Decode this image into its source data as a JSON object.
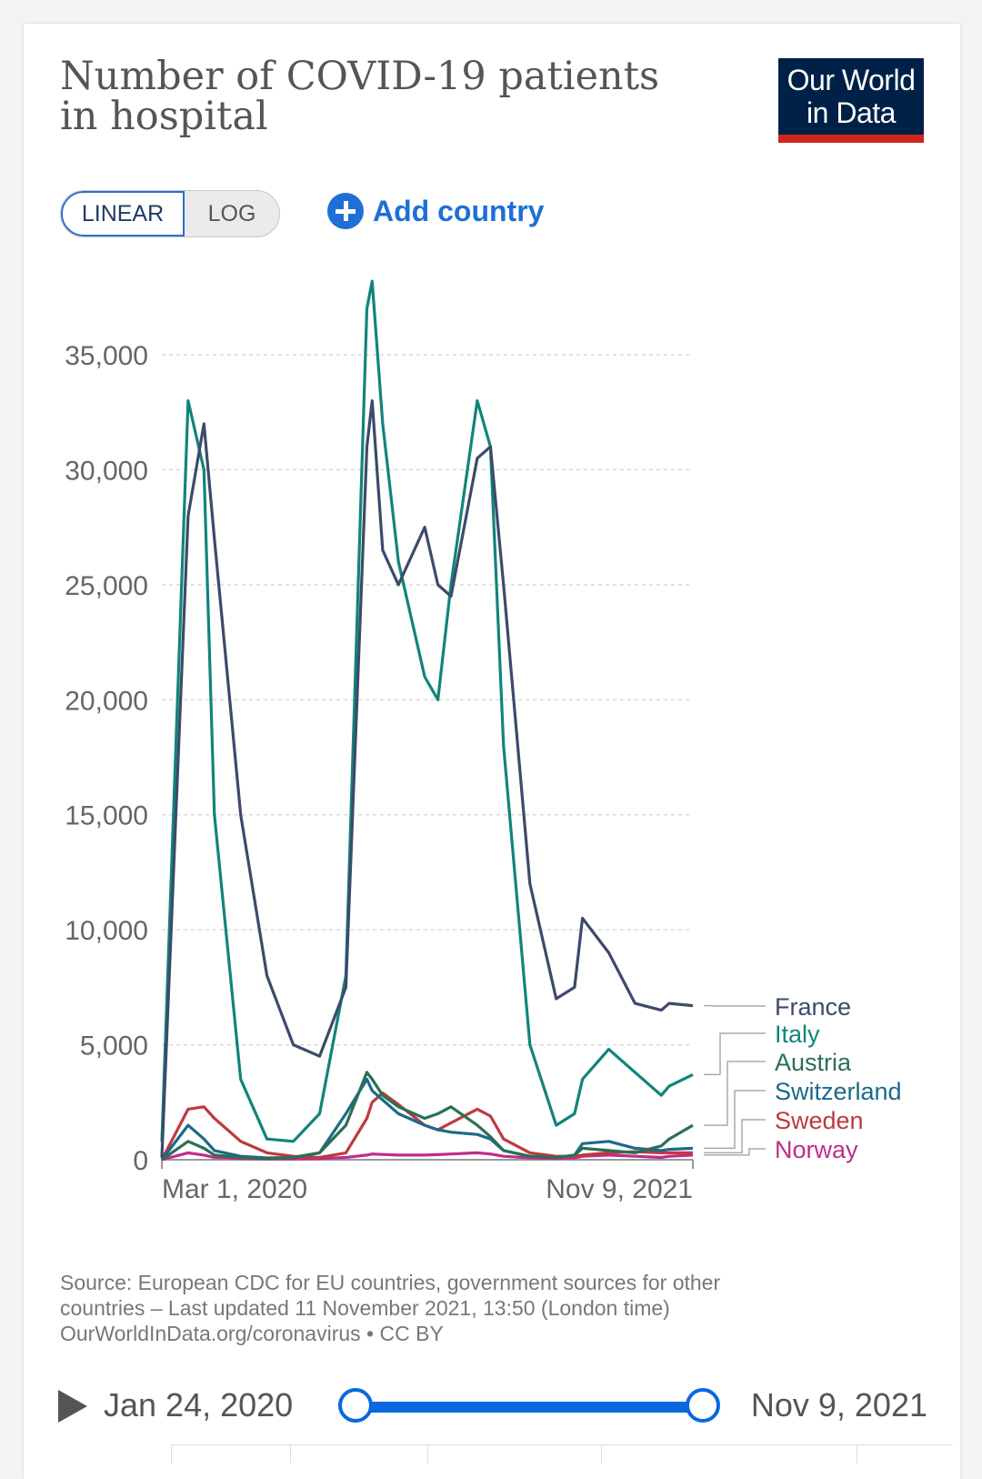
{
  "header": {
    "title": "Number of COVID-19 patients in hospital",
    "logo_line1": "Our World",
    "logo_line2": "in Data"
  },
  "controls": {
    "linear_label": "LINEAR",
    "log_label": "LOG",
    "add_country_label": "Add country"
  },
  "chart_data": {
    "type": "line",
    "title": "Number of COVID-19 patients in hospital",
    "xlabel": "",
    "ylabel": "",
    "ylim": [
      0,
      38000
    ],
    "yticks": [
      0,
      5000,
      10000,
      15000,
      20000,
      25000,
      30000,
      35000
    ],
    "ytick_labels": [
      "0",
      "5,000",
      "10,000",
      "15,000",
      "20,000",
      "25,000",
      "30,000",
      "35,000"
    ],
    "x_range_labels": [
      "Mar 1, 2020",
      "Nov 9, 2021"
    ],
    "x_months": [
      0,
      1,
      1.6,
      2,
      3,
      4,
      5,
      6,
      7,
      7.8,
      8,
      8.4,
      9,
      10,
      10.5,
      11,
      12,
      12.5,
      13,
      14,
      15,
      15.7,
      16,
      17,
      18,
      19,
      19.3,
      20.2
    ],
    "grid": true,
    "legend_position": "right",
    "series": [
      {
        "name": "France",
        "color": "#3c4a6b",
        "values": [
          100,
          28000,
          32000,
          27000,
          15000,
          8000,
          5000,
          4500,
          7500,
          31000,
          33000,
          26500,
          25000,
          27500,
          25000,
          24500,
          30500,
          31000,
          25000,
          12000,
          7000,
          7500,
          10500,
          9000,
          6800,
          6500,
          6800,
          6700
        ]
      },
      {
        "name": "Italy",
        "color": "#11847a",
        "values": [
          800,
          33000,
          30000,
          15000,
          3500,
          900,
          800,
          2000,
          8000,
          37000,
          38200,
          32000,
          26000,
          21000,
          20000,
          25000,
          33000,
          31000,
          18000,
          5000,
          1500,
          2000,
          3500,
          4800,
          3800,
          2800,
          3200,
          3700
        ]
      },
      {
        "name": "Austria",
        "color": "#2b6f53",
        "values": [
          0,
          800,
          500,
          200,
          100,
          50,
          100,
          300,
          1500,
          3800,
          3500,
          2800,
          2300,
          1800,
          2000,
          2300,
          1500,
          1000,
          400,
          150,
          100,
          200,
          500,
          400,
          300,
          600,
          900,
          1500
        ]
      },
      {
        "name": "Switzerland",
        "color": "#1a6a8a",
        "values": [
          0,
          1500,
          900,
          400,
          150,
          80,
          100,
          300,
          2000,
          3500,
          3000,
          2600,
          2000,
          1500,
          1300,
          1200,
          1100,
          900,
          400,
          150,
          100,
          200,
          700,
          800,
          500,
          400,
          450,
          500
        ]
      },
      {
        "name": "Sweden",
        "color": "#c0393f",
        "values": [
          0,
          2200,
          2300,
          1800,
          800,
          300,
          150,
          100,
          300,
          1800,
          2500,
          2900,
          2400,
          1500,
          1300,
          1600,
          2200,
          1900,
          900,
          300,
          150,
          150,
          200,
          300,
          350,
          300,
          300,
          300
        ]
      },
      {
        "name": "Norway",
        "color": "#c02c8a",
        "values": [
          0,
          300,
          200,
          100,
          50,
          30,
          30,
          50,
          100,
          200,
          250,
          230,
          200,
          200,
          220,
          250,
          300,
          250,
          150,
          80,
          60,
          80,
          150,
          200,
          150,
          100,
          150,
          200
        ]
      }
    ]
  },
  "footer": {
    "source_line1": "Source: European CDC for EU countries, government sources for other",
    "source_line2": "countries – Last updated 11 November 2021, 13:50 (London time)",
    "source_line3": "OurWorldInData.org/coronavirus • CC BY"
  },
  "timeline": {
    "start_label": "Jan 24, 2020",
    "end_label": "Nov 9, 2021"
  }
}
